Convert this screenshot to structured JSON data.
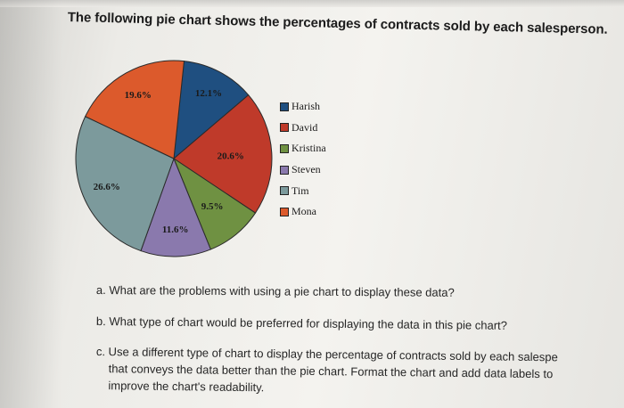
{
  "heading": "The following pie chart shows the percentages of contracts sold by each salesperson.",
  "chart_data": {
    "type": "pie",
    "categories": [
      "Harish",
      "David",
      "Kristina",
      "Steven",
      "Tim",
      "Mona"
    ],
    "values": [
      12.1,
      20.6,
      9.5,
      11.6,
      26.6,
      19.6
    ],
    "labels": [
      "12.1%",
      "20.6%",
      "9.5%",
      "11.6%",
      "26.6%",
      "19.6%"
    ],
    "colors": [
      "#1f4f80",
      "#bf3a2a",
      "#6f9142",
      "#8a79ad",
      "#7c9a9c",
      "#dc5a2c"
    ],
    "legend": "right"
  },
  "questions": {
    "a": "a. What are the problems with using a pie chart to display these data?",
    "b": "b. What type of chart would be preferred for displaying the data in this pie chart?",
    "c_line1": "c. Use a different type of chart to display the percentage of contracts sold by each salespe",
    "c_line2": "that conveys the data better than the pie chart. Format the chart and add data labels to",
    "c_line3": "improve the chart's readability."
  }
}
